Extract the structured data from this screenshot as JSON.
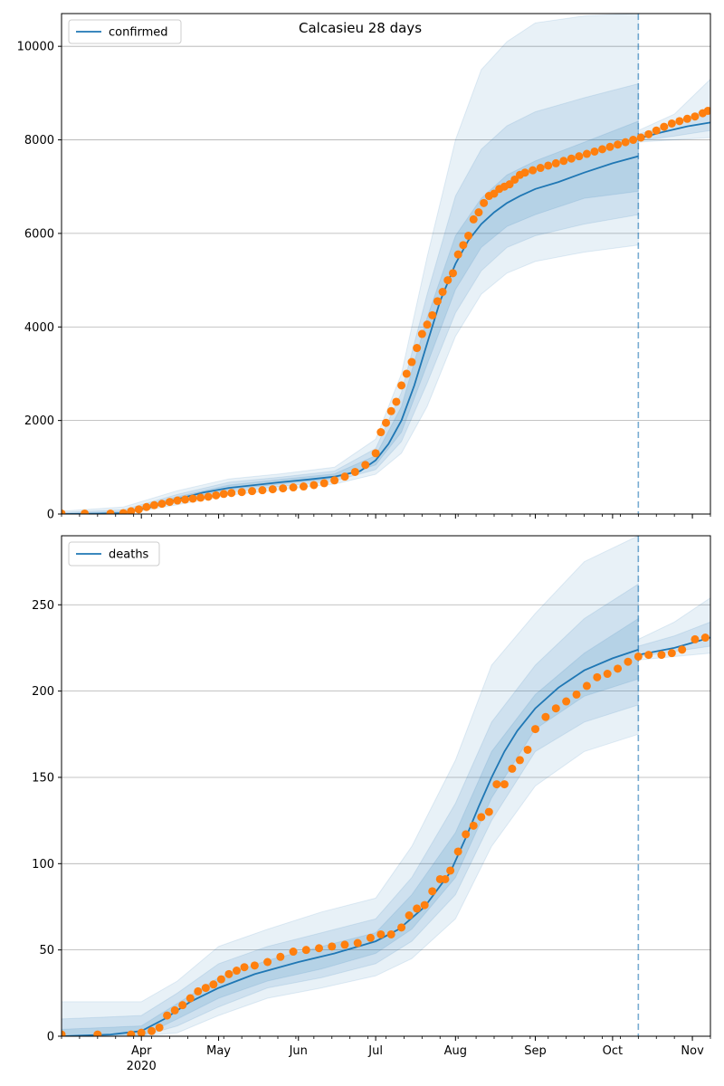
{
  "figure_title": "Calcasieu 28 days",
  "colors": {
    "model_line": "#1f77b4",
    "observed_points": "#ff7f0e",
    "band": "#1f77b4",
    "grid": "#b0b0b0",
    "forecast_marker": "#1f77b4"
  },
  "chart_data": [
    {
      "type": "line",
      "legend_label": "confirmed",
      "legend_position": "top-left",
      "grid": "horizontal",
      "xlim": [
        "2020-03-01",
        "2020-11-08"
      ],
      "ylim": [
        0,
        10700
      ],
      "yticks": [
        0,
        2000,
        4000,
        6000,
        8000,
        10000
      ],
      "xticks": [
        {
          "date": "2020-04-01",
          "label": "Apr",
          "sublabel": ""
        },
        {
          "date": "2020-05-01",
          "label": "May",
          "sublabel": ""
        },
        {
          "date": "2020-06-01",
          "label": "Jun",
          "sublabel": ""
        },
        {
          "date": "2020-07-01",
          "label": "Jul",
          "sublabel": ""
        },
        {
          "date": "2020-08-01",
          "label": "Aug",
          "sublabel": ""
        },
        {
          "date": "2020-09-01",
          "label": "Sep",
          "sublabel": ""
        },
        {
          "date": "2020-10-01",
          "label": "Oct",
          "sublabel": ""
        },
        {
          "date": "2020-11-01",
          "label": "Nov",
          "sublabel": ""
        }
      ],
      "forecast_start": "2020-10-11",
      "model": {
        "x": [
          "2020-03-01",
          "2020-03-15",
          "2020-03-25",
          "2020-04-05",
          "2020-04-15",
          "2020-04-25",
          "2020-05-05",
          "2020-05-15",
          "2020-05-25",
          "2020-06-05",
          "2020-06-15",
          "2020-06-25",
          "2020-07-01",
          "2020-07-06",
          "2020-07-11",
          "2020-07-16",
          "2020-07-21",
          "2020-07-26",
          "2020-08-01",
          "2020-08-06",
          "2020-08-11",
          "2020-08-16",
          "2020-08-21",
          "2020-08-26",
          "2020-09-01",
          "2020-09-10",
          "2020-09-20",
          "2020-10-01",
          "2020-10-11"
        ],
        "y": [
          0,
          5,
          20,
          150,
          320,
          460,
          560,
          620,
          680,
          740,
          800,
          920,
          1150,
          1500,
          2000,
          2750,
          3650,
          4550,
          5350,
          5850,
          6200,
          6450,
          6650,
          6800,
          6950,
          7100,
          7300,
          7500,
          7650
        ]
      },
      "forecast_line": {
        "x": [
          "2020-10-11",
          "2020-10-20",
          "2020-10-30",
          "2020-11-08"
        ],
        "y": [
          8030,
          8160,
          8290,
          8370
        ]
      },
      "bands": [
        {
          "x": [
            "2020-03-01",
            "2020-03-25",
            "2020-04-15",
            "2020-05-05",
            "2020-05-25",
            "2020-06-15",
            "2020-07-01",
            "2020-07-11",
            "2020-07-21",
            "2020-08-01",
            "2020-08-11",
            "2020-08-21",
            "2020-09-01",
            "2020-09-20",
            "2020-10-11"
          ],
          "lo": [
            0,
            0,
            200,
            400,
            520,
            640,
            850,
            1300,
            2300,
            3800,
            4700,
            5150,
            5400,
            5600,
            5750
          ],
          "hi": [
            60,
            150,
            500,
            750,
            860,
            1000,
            1600,
            3000,
            5500,
            8000,
            9500,
            10100,
            10500,
            10650,
            10700
          ]
        },
        {
          "x": [
            "2020-03-01",
            "2020-03-25",
            "2020-04-15",
            "2020-05-05",
            "2020-05-25",
            "2020-06-15",
            "2020-07-01",
            "2020-07-11",
            "2020-07-21",
            "2020-08-01",
            "2020-08-11",
            "2020-08-21",
            "2020-09-01",
            "2020-09-20",
            "2020-10-11"
          ],
          "lo": [
            0,
            5,
            250,
            470,
            590,
            710,
            950,
            1550,
            2800,
            4300,
            5200,
            5700,
            5950,
            6200,
            6400
          ],
          "hi": [
            30,
            90,
            420,
            680,
            790,
            920,
            1400,
            2600,
            4700,
            6800,
            7800,
            8300,
            8600,
            8900,
            9200
          ]
        },
        {
          "x": [
            "2020-03-01",
            "2020-03-25",
            "2020-04-15",
            "2020-05-05",
            "2020-05-25",
            "2020-06-15",
            "2020-07-01",
            "2020-07-11",
            "2020-07-21",
            "2020-08-01",
            "2020-08-11",
            "2020-08-21",
            "2020-09-01",
            "2020-09-20",
            "2020-10-11"
          ],
          "lo": [
            0,
            10,
            290,
            520,
            640,
            760,
            1050,
            1750,
            3200,
            4800,
            5700,
            6150,
            6400,
            6750,
            6900
          ],
          "hi": [
            15,
            50,
            370,
            620,
            740,
            860,
            1250,
            2300,
            4200,
            5950,
            6750,
            7250,
            7550,
            7950,
            8400
          ]
        }
      ],
      "forecast_bands": [
        {
          "x": [
            "2020-10-11",
            "2020-10-25",
            "2020-11-08"
          ],
          "lo": [
            7950,
            8000,
            8050
          ],
          "hi": [
            8200,
            8550,
            9300
          ]
        },
        {
          "x": [
            "2020-10-11",
            "2020-10-25",
            "2020-11-08"
          ],
          "lo": [
            7980,
            8080,
            8200
          ],
          "hi": [
            8120,
            8350,
            8700
          ]
        }
      ],
      "observed": {
        "x": [
          "2020-03-01",
          "2020-03-10",
          "2020-03-20",
          "2020-03-25",
          "2020-03-28",
          "2020-03-31",
          "2020-04-03",
          "2020-04-06",
          "2020-04-09",
          "2020-04-12",
          "2020-04-15",
          "2020-04-18",
          "2020-04-21",
          "2020-04-24",
          "2020-04-27",
          "2020-04-30",
          "2020-05-03",
          "2020-05-06",
          "2020-05-10",
          "2020-05-14",
          "2020-05-18",
          "2020-05-22",
          "2020-05-26",
          "2020-05-30",
          "2020-06-03",
          "2020-06-07",
          "2020-06-11",
          "2020-06-15",
          "2020-06-19",
          "2020-06-23",
          "2020-06-27",
          "2020-07-01",
          "2020-07-03",
          "2020-07-05",
          "2020-07-07",
          "2020-07-09",
          "2020-07-11",
          "2020-07-13",
          "2020-07-15",
          "2020-07-17",
          "2020-07-19",
          "2020-07-21",
          "2020-07-23",
          "2020-07-25",
          "2020-07-27",
          "2020-07-29",
          "2020-07-31",
          "2020-08-02",
          "2020-08-04",
          "2020-08-06",
          "2020-08-08",
          "2020-08-10",
          "2020-08-12",
          "2020-08-14",
          "2020-08-16",
          "2020-08-18",
          "2020-08-20",
          "2020-08-22",
          "2020-08-24",
          "2020-08-26",
          "2020-08-28",
          "2020-08-31",
          "2020-09-03",
          "2020-09-06",
          "2020-09-09",
          "2020-09-12",
          "2020-09-15",
          "2020-09-18",
          "2020-09-21",
          "2020-09-24",
          "2020-09-27",
          "2020-09-30",
          "2020-10-03",
          "2020-10-06",
          "2020-10-09",
          "2020-10-12",
          "2020-10-15",
          "2020-10-18",
          "2020-10-21",
          "2020-10-24",
          "2020-10-27",
          "2020-10-30",
          "2020-11-02",
          "2020-11-05",
          "2020-11-07"
        ],
        "y": [
          10,
          10,
          10,
          20,
          60,
          100,
          150,
          190,
          220,
          260,
          290,
          310,
          330,
          350,
          370,
          400,
          430,
          450,
          470,
          490,
          510,
          530,
          550,
          570,
          590,
          620,
          660,
          720,
          800,
          900,
          1050,
          1300,
          1750,
          1950,
          2200,
          2400,
          2750,
          3000,
          3250,
          3550,
          3850,
          4050,
          4250,
          4550,
          4750,
          5000,
          5150,
          5550,
          5750,
          5950,
          6300,
          6450,
          6650,
          6800,
          6850,
          6950,
          7000,
          7050,
          7150,
          7250,
          7300,
          7350,
          7400,
          7450,
          7500,
          7550,
          7600,
          7650,
          7700,
          7750,
          7800,
          7850,
          7900,
          7950,
          8000,
          8050,
          8120,
          8200,
          8280,
          8350,
          8400,
          8450,
          8500,
          8570,
          8620
        ]
      }
    },
    {
      "type": "line",
      "legend_label": "deaths",
      "legend_position": "top-left",
      "grid": "horizontal",
      "xlim": [
        "2020-03-01",
        "2020-11-08"
      ],
      "ylim": [
        0,
        290
      ],
      "yticks": [
        0,
        50,
        100,
        150,
        200,
        250
      ],
      "xticks": [
        {
          "date": "2020-04-01",
          "label": "Apr",
          "sublabel": "2020"
        },
        {
          "date": "2020-05-01",
          "label": "May",
          "sublabel": ""
        },
        {
          "date": "2020-06-01",
          "label": "Jun",
          "sublabel": ""
        },
        {
          "date": "2020-07-01",
          "label": "Jul",
          "sublabel": ""
        },
        {
          "date": "2020-08-01",
          "label": "Aug",
          "sublabel": ""
        },
        {
          "date": "2020-09-01",
          "label": "Sep",
          "sublabel": ""
        },
        {
          "date": "2020-10-01",
          "label": "Oct",
          "sublabel": ""
        },
        {
          "date": "2020-11-01",
          "label": "Nov",
          "sublabel": ""
        }
      ],
      "forecast_start": "2020-10-11",
      "model": {
        "x": [
          "2020-03-01",
          "2020-03-20",
          "2020-04-01",
          "2020-04-10",
          "2020-04-20",
          "2020-05-01",
          "2020-05-15",
          "2020-06-01",
          "2020-06-15",
          "2020-07-01",
          "2020-07-10",
          "2020-07-20",
          "2020-07-30",
          "2020-08-05",
          "2020-08-10",
          "2020-08-15",
          "2020-08-20",
          "2020-08-25",
          "2020-09-01",
          "2020-09-10",
          "2020-09-20",
          "2020-10-01",
          "2020-10-11"
        ],
        "y": [
          0,
          1,
          3,
          10,
          20,
          28,
          36,
          43,
          48,
          55,
          62,
          75,
          95,
          115,
          133,
          150,
          165,
          177,
          190,
          202,
          212,
          219,
          224
        ]
      },
      "forecast_line": {
        "x": [
          "2020-10-11",
          "2020-10-25",
          "2020-11-08"
        ],
        "y": [
          221,
          225,
          231
        ]
      },
      "bands": [
        {
          "x": [
            "2020-03-01",
            "2020-04-01",
            "2020-04-15",
            "2020-05-01",
            "2020-05-20",
            "2020-06-10",
            "2020-07-01",
            "2020-07-15",
            "2020-08-01",
            "2020-08-15",
            "2020-09-01",
            "2020-09-20",
            "2020-10-11"
          ],
          "lo": [
            0,
            0,
            2,
            12,
            22,
            28,
            35,
            45,
            68,
            110,
            145,
            165,
            175
          ],
          "hi": [
            20,
            20,
            32,
            52,
            62,
            72,
            80,
            110,
            160,
            215,
            245,
            275,
            290
          ]
        },
        {
          "x": [
            "2020-03-01",
            "2020-04-01",
            "2020-04-15",
            "2020-05-01",
            "2020-05-20",
            "2020-06-10",
            "2020-07-01",
            "2020-07-15",
            "2020-08-01",
            "2020-08-15",
            "2020-09-01",
            "2020-09-20",
            "2020-10-11"
          ],
          "lo": [
            0,
            0,
            6,
            17,
            28,
            34,
            42,
            55,
            82,
            125,
            165,
            182,
            192
          ],
          "hi": [
            10,
            12,
            25,
            42,
            52,
            60,
            68,
            92,
            135,
            182,
            215,
            242,
            262
          ]
        },
        {
          "x": [
            "2020-03-01",
            "2020-04-01",
            "2020-04-15",
            "2020-05-01",
            "2020-05-20",
            "2020-06-10",
            "2020-07-01",
            "2020-07-15",
            "2020-08-01",
            "2020-08-15",
            "2020-09-01",
            "2020-09-20",
            "2020-10-11"
          ],
          "lo": [
            0,
            0,
            10,
            22,
            32,
            39,
            48,
            62,
            92,
            138,
            178,
            197,
            207
          ],
          "hi": [
            4,
            6,
            19,
            34,
            44,
            52,
            60,
            82,
            118,
            165,
            198,
            222,
            242
          ]
        }
      ],
      "forecast_bands": [
        {
          "x": [
            "2020-10-11",
            "2020-10-25",
            "2020-11-08"
          ],
          "lo": [
            218,
            220,
            222
          ],
          "hi": [
            230,
            240,
            254
          ]
        },
        {
          "x": [
            "2020-10-11",
            "2020-10-25",
            "2020-11-08"
          ],
          "lo": [
            220,
            223,
            226
          ],
          "hi": [
            226,
            232,
            240
          ]
        }
      ],
      "observed": {
        "x": [
          "2020-03-01",
          "2020-03-15",
          "2020-03-28",
          "2020-04-01",
          "2020-04-05",
          "2020-04-08",
          "2020-04-11",
          "2020-04-14",
          "2020-04-17",
          "2020-04-20",
          "2020-04-23",
          "2020-04-26",
          "2020-04-29",
          "2020-05-02",
          "2020-05-05",
          "2020-05-08",
          "2020-05-11",
          "2020-05-15",
          "2020-05-20",
          "2020-05-25",
          "2020-05-30",
          "2020-06-04",
          "2020-06-09",
          "2020-06-14",
          "2020-06-19",
          "2020-06-24",
          "2020-06-29",
          "2020-07-03",
          "2020-07-07",
          "2020-07-11",
          "2020-07-14",
          "2020-07-17",
          "2020-07-20",
          "2020-07-23",
          "2020-07-26",
          "2020-07-28",
          "2020-07-30",
          "2020-08-02",
          "2020-08-05",
          "2020-08-08",
          "2020-08-11",
          "2020-08-14",
          "2020-08-17",
          "2020-08-20",
          "2020-08-23",
          "2020-08-26",
          "2020-08-29",
          "2020-09-01",
          "2020-09-05",
          "2020-09-09",
          "2020-09-13",
          "2020-09-17",
          "2020-09-21",
          "2020-09-25",
          "2020-09-29",
          "2020-10-03",
          "2020-10-07",
          "2020-10-11",
          "2020-10-15",
          "2020-10-20",
          "2020-10-24",
          "2020-10-28",
          "2020-11-02",
          "2020-11-06"
        ],
        "y": [
          1,
          1,
          1,
          2,
          3,
          5,
          12,
          15,
          18,
          22,
          26,
          28,
          30,
          33,
          36,
          38,
          40,
          41,
          43,
          46,
          49,
          50,
          51,
          52,
          53,
          54,
          57,
          59,
          59,
          63,
          70,
          74,
          76,
          84,
          91,
          91,
          96,
          107,
          117,
          122,
          127,
          130,
          146,
          146,
          155,
          160,
          166,
          178,
          185,
          190,
          194,
          198,
          203,
          208,
          210,
          213,
          217,
          220,
          221,
          221,
          222,
          224,
          230,
          231
        ]
      }
    }
  ]
}
